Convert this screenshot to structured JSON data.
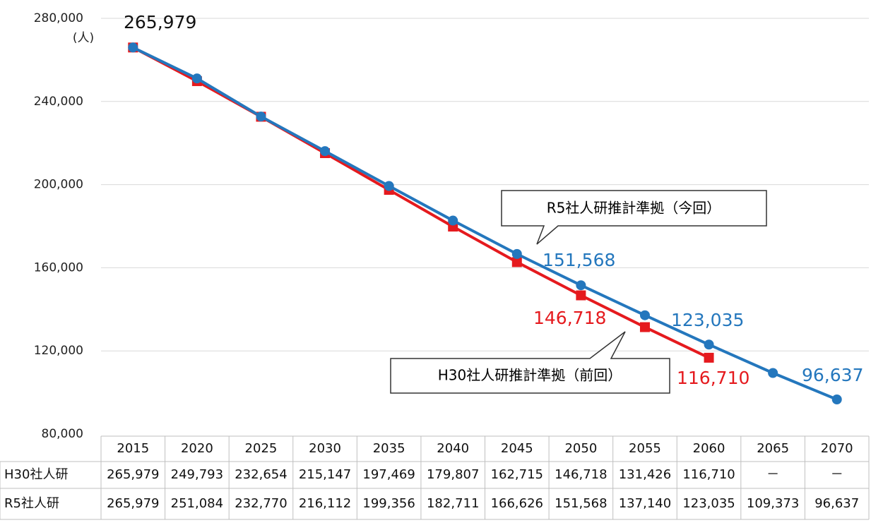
{
  "chart_data": {
    "type": "line",
    "y_label": "(人)",
    "categories": [
      "2015",
      "2020",
      "2025",
      "2030",
      "2035",
      "2040",
      "2045",
      "2050",
      "2055",
      "2060",
      "2065",
      "2070"
    ],
    "series": [
      {
        "name": "H30社人研",
        "color": "#e51a1e",
        "marker": "square",
        "values": [
          265979,
          249793,
          232654,
          215147,
          197469,
          179807,
          162715,
          146718,
          131426,
          116710,
          null,
          null
        ],
        "value_labels": [
          "265,979",
          "249,793",
          "232,654",
          "215,147",
          "197,469",
          "179,807",
          "162,715",
          "146,718",
          "131,426",
          "116,710",
          "－",
          "－"
        ]
      },
      {
        "name": "R5社人研",
        "color": "#2477bd",
        "marker": "circle",
        "values": [
          265979,
          251084,
          232770,
          216112,
          199356,
          182711,
          166626,
          151568,
          137140,
          123035,
          109373,
          96637
        ],
        "value_labels": [
          "265,979",
          "251,084",
          "232,770",
          "216,112",
          "199,356",
          "182,711",
          "166,626",
          "151,568",
          "137,140",
          "123,035",
          "109,373",
          "96,637"
        ]
      }
    ],
    "annotations": [
      "R5社人研推計準拠（今回）",
      "H30社人研推計準拠（前回）"
    ],
    "ylim": [
      80000,
      280000
    ],
    "yticks": [
      {
        "value": 80000,
        "label": "80,000"
      },
      {
        "value": 120000,
        "label": "120,000"
      },
      {
        "value": 160000,
        "label": "160,000"
      },
      {
        "value": 200000,
        "label": "200,000"
      },
      {
        "value": 240000,
        "label": "240,000"
      },
      {
        "value": 280000,
        "label": "280,000"
      }
    ],
    "grid": true
  }
}
